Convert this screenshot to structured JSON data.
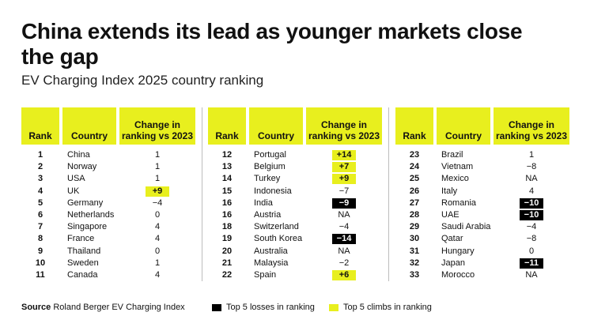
{
  "title": "China extends its lead as younger markets close the gap",
  "subtitle": "EV Charging Index 2025 country ranking",
  "headers": {
    "rank": "Rank",
    "country": "Country",
    "change": "Change in ranking vs 2023"
  },
  "colors": {
    "gain": "#e8ef1e",
    "loss": "#000000"
  },
  "chart_data": {
    "type": "table",
    "title": "EV Charging Index 2025 country ranking",
    "columns": [
      "Rank",
      "Country",
      "Change in ranking vs 2023"
    ],
    "rows": [
      {
        "rank": "1",
        "country": "China",
        "change": "1",
        "mark": ""
      },
      {
        "rank": "2",
        "country": "Norway",
        "change": "1",
        "mark": ""
      },
      {
        "rank": "3",
        "country": "USA",
        "change": "1",
        "mark": ""
      },
      {
        "rank": "4",
        "country": "UK",
        "change": "+9",
        "mark": "gain"
      },
      {
        "rank": "5",
        "country": "Germany",
        "change": "-4",
        "mark": ""
      },
      {
        "rank": "6",
        "country": "Netherlands",
        "change": "0",
        "mark": ""
      },
      {
        "rank": "7",
        "country": "Singapore",
        "change": "4",
        "mark": ""
      },
      {
        "rank": "8",
        "country": "France",
        "change": "4",
        "mark": ""
      },
      {
        "rank": "9",
        "country": "Thailand",
        "change": "0",
        "mark": ""
      },
      {
        "rank": "10",
        "country": "Sweden",
        "change": "1",
        "mark": ""
      },
      {
        "rank": "11",
        "country": "Canada",
        "change": "4",
        "mark": ""
      },
      {
        "rank": "12",
        "country": "Portugal",
        "change": "+14",
        "mark": "gain"
      },
      {
        "rank": "13",
        "country": "Belgium",
        "change": "+7",
        "mark": "gain"
      },
      {
        "rank": "14",
        "country": "Turkey",
        "change": "+9",
        "mark": "gain"
      },
      {
        "rank": "15",
        "country": "Indonesia",
        "change": "-7",
        "mark": ""
      },
      {
        "rank": "16",
        "country": "India",
        "change": "-9",
        "mark": "loss"
      },
      {
        "rank": "16",
        "country": "Austria",
        "change": "NA",
        "mark": ""
      },
      {
        "rank": "18",
        "country": "Switzerland",
        "change": "-4",
        "mark": ""
      },
      {
        "rank": "19",
        "country": "South Korea",
        "change": "-14",
        "mark": "loss"
      },
      {
        "rank": "20",
        "country": "Australia",
        "change": "NA",
        "mark": ""
      },
      {
        "rank": "21",
        "country": "Malaysia",
        "change": "-2",
        "mark": ""
      },
      {
        "rank": "22",
        "country": "Spain",
        "change": "+6",
        "mark": "gain"
      },
      {
        "rank": "23",
        "country": "Brazil",
        "change": "1",
        "mark": ""
      },
      {
        "rank": "24",
        "country": "Vietnam",
        "change": "-8",
        "mark": ""
      },
      {
        "rank": "25",
        "country": "Mexico",
        "change": "NA",
        "mark": ""
      },
      {
        "rank": "26",
        "country": "Italy",
        "change": "4",
        "mark": ""
      },
      {
        "rank": "27",
        "country": "Romania",
        "change": "-10",
        "mark": "loss"
      },
      {
        "rank": "28",
        "country": "UAE",
        "change": "-10",
        "mark": "loss"
      },
      {
        "rank": "29",
        "country": "Saudi Arabia",
        "change": "-4",
        "mark": ""
      },
      {
        "rank": "30",
        "country": "Qatar",
        "change": "-8",
        "mark": ""
      },
      {
        "rank": "31",
        "country": "Hungary",
        "change": "0",
        "mark": ""
      },
      {
        "rank": "32",
        "country": "Japan",
        "change": "-11",
        "mark": "loss"
      },
      {
        "rank": "33",
        "country": "Morocco",
        "change": "NA",
        "mark": ""
      }
    ],
    "legend": [
      "Top 5 losses in ranking",
      "Top 5 climbs in ranking"
    ]
  },
  "footer": {
    "source_label": "Source",
    "source_text": "Roland Berger EV Charging Index"
  },
  "legend": {
    "losses": "Top 5 losses in ranking",
    "climbs": "Top 5 climbs in ranking"
  }
}
